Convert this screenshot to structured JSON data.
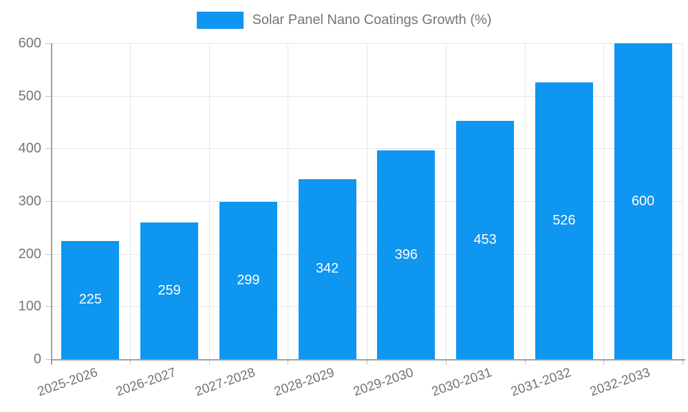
{
  "chart_data": {
    "type": "bar",
    "title": "Solar Panel Nano Coatings Growth (%)",
    "categories": [
      "2025-2026",
      "2026-2027",
      "2027-2028",
      "2028-2029",
      "2029-2030",
      "2030-2031",
      "2031-2032",
      "2032-2033"
    ],
    "values": [
      225,
      259,
      299,
      342,
      396,
      453,
      526,
      600
    ],
    "xlabel": "",
    "ylabel": "",
    "ylim": [
      0,
      600
    ],
    "yticks": [
      0,
      100,
      200,
      300,
      400,
      500,
      600
    ],
    "grid": true,
    "legend_position": "top",
    "value_labels": "centered-inside-bars",
    "colors": {
      "bar": "#0e96f0",
      "value_label": "#ffffff",
      "axis_text": "#757575",
      "grid_line": "#e6e6e6",
      "axis_line": "#9e9e9e",
      "tick_mark": "#c2c2c2"
    }
  }
}
